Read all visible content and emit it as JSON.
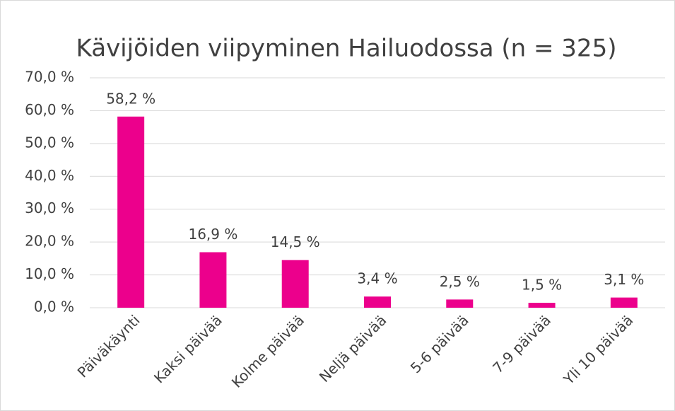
{
  "chart_data": {
    "type": "bar",
    "title": "Kävijöiden viipyminen Hailuodossa (n = 325)",
    "categories": [
      "Päiväkäynti",
      "Kaksi päivää",
      "Kolme päivää",
      "Neljä päivää",
      "5-6 päivää",
      "7-9 päivää",
      "Yli 10 päivää"
    ],
    "values": [
      58.2,
      16.9,
      14.5,
      3.4,
      2.5,
      1.5,
      3.1
    ],
    "value_labels": [
      "58,2 %",
      "16,9 %",
      "14,5 %",
      "3,4 %",
      "2,5 %",
      "1,5 %",
      "3,1 %"
    ],
    "color": "#ec008c",
    "ylim": [
      0,
      70
    ],
    "yticks": [
      {
        "value": 0,
        "label": "0,0 %"
      },
      {
        "value": 10,
        "label": "10,0 %"
      },
      {
        "value": 20,
        "label": "20,0 %"
      },
      {
        "value": 30,
        "label": "30,0 %"
      },
      {
        "value": 40,
        "label": "40,0 %"
      },
      {
        "value": 50,
        "label": "50,0 %"
      },
      {
        "value": 60,
        "label": "60,0 %"
      },
      {
        "value": 70,
        "label": "70,0 %"
      }
    ],
    "grid": true
  }
}
